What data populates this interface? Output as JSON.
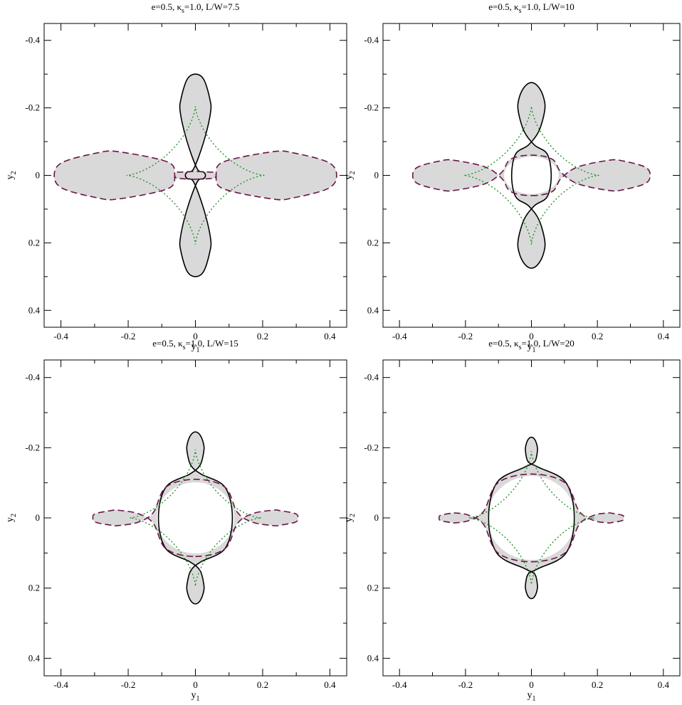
{
  "chart_data": [
    {
      "type": "line",
      "title": {
        "prefix": "e=0.5, κ",
        "sub": "s",
        "suffix": "=1.0, L/W=7.5"
      },
      "xlabel": {
        "main": "y",
        "sub": "1"
      },
      "ylabel": {
        "main": "y",
        "sub": "2"
      },
      "xlim": [
        -0.45,
        0.45
      ],
      "ylim": [
        -0.45,
        0.45
      ],
      "xticks": [
        "-0.4",
        "-0.2",
        "0",
        "0.2",
        "0.4"
      ],
      "yticks": [
        "-0.4",
        "-0.2",
        "0",
        "0.2",
        "0.4"
      ],
      "grid": false,
      "series": [
        {
          "style": "solid",
          "color": "#000000",
          "shape": "vertical_lobes",
          "outer_extent": 0.3,
          "waist": 0.03,
          "inner_half_width": 0.0,
          "inner_half_height": 0.0,
          "lobe_half_width": 0.045,
          "crossing": 0.1,
          "shaded": true
        },
        {
          "style": "dashed",
          "color": "#6a1548",
          "shape": "horizontal_lobes",
          "outer_extent": 0.42,
          "waist": 0.01,
          "inner_half_width": 0.06,
          "inner_half_height": 0.012,
          "lobe_half_width": 0.07,
          "crossing": 0.08,
          "shaded": true
        },
        {
          "style": "dotted",
          "color": "#1a8c1a",
          "shape": "astroid",
          "radius": 0.205
        }
      ]
    },
    {
      "type": "line",
      "title": {
        "prefix": "e=0.5, κ",
        "sub": "s",
        "suffix": "=1.0, L/W=10"
      },
      "xlabel": {
        "main": "y",
        "sub": "1"
      },
      "ylabel": {
        "main": "y",
        "sub": "2"
      },
      "xlim": [
        -0.45,
        0.45
      ],
      "ylim": [
        -0.45,
        0.45
      ],
      "xticks": [
        "-0.4",
        "-0.2",
        "0",
        "0.2",
        "0.4"
      ],
      "yticks": [
        "-0.4",
        "-0.2",
        "0",
        "0.2",
        "0.4"
      ],
      "grid": false,
      "series": [
        {
          "style": "solid",
          "color": "#000000",
          "shape": "vertical_lobes",
          "outer_extent": 0.275,
          "waist": 0.06,
          "inner_half_width": 0.09,
          "inner_half_height": 0.06,
          "lobe_half_width": 0.04,
          "crossing": 0.13,
          "shaded": true
        },
        {
          "style": "dashed",
          "color": "#6a1548",
          "shape": "horizontal_lobes",
          "outer_extent": 0.36,
          "waist": 0.06,
          "inner_half_width": 0.09,
          "inner_half_height": 0.06,
          "lobe_half_width": 0.045,
          "crossing": 0.14,
          "shaded": true
        },
        {
          "style": "dotted",
          "color": "#1a8c1a",
          "shape": "astroid",
          "radius": 0.205
        }
      ]
    },
    {
      "type": "line",
      "title": {
        "prefix": "e=0.5, κ",
        "sub": "s",
        "suffix": "=1.0, L/W=15"
      },
      "xlabel": {
        "main": "y",
        "sub": "1"
      },
      "ylabel": {
        "main": "y",
        "sub": "2"
      },
      "xlim": [
        -0.45,
        0.45
      ],
      "ylim": [
        -0.45,
        0.45
      ],
      "xticks": [
        "-0.4",
        "-0.2",
        "0",
        "0.2",
        "0.4"
      ],
      "yticks": [
        "-0.4",
        "-0.2",
        "0",
        "0.2",
        "0.4"
      ],
      "grid": false,
      "series": [
        {
          "style": "solid",
          "color": "#000000",
          "shape": "vertical_lobes",
          "outer_extent": 0.245,
          "waist": 0.11,
          "inner_half_width": 0.125,
          "inner_half_height": 0.11,
          "lobe_half_width": 0.025,
          "crossing": 0.15,
          "shaded": true
        },
        {
          "style": "dashed",
          "color": "#6a1548",
          "shape": "horizontal_lobes",
          "outer_extent": 0.305,
          "waist": 0.11,
          "inner_half_width": 0.125,
          "inner_half_height": 0.105,
          "lobe_half_width": 0.022,
          "crossing": 0.17,
          "shaded": true
        },
        {
          "style": "dotted",
          "color": "#1a8c1a",
          "shape": "astroid",
          "radius": 0.195
        }
      ]
    },
    {
      "type": "line",
      "title": {
        "prefix": "e=0.5, κ",
        "sub": "s",
        "suffix": "=1.0, L/W=20"
      },
      "xlabel": {
        "main": "y",
        "sub": "1"
      },
      "ylabel": {
        "main": "y",
        "sub": "2"
      },
      "xlim": [
        -0.45,
        0.45
      ],
      "ylim": [
        -0.45,
        0.45
      ],
      "xticks": [
        "-0.4",
        "-0.2",
        "0",
        "0.2",
        "0.4"
      ],
      "yticks": [
        "-0.4",
        "-0.2",
        "0",
        "0.2",
        "0.4"
      ],
      "grid": false,
      "series": [
        {
          "style": "solid",
          "color": "#000000",
          "shape": "vertical_lobes",
          "outer_extent": 0.23,
          "waist": 0.13,
          "inner_half_width": 0.145,
          "inner_half_height": 0.13,
          "lobe_half_width": 0.018,
          "crossing": 0.16,
          "shaded": true
        },
        {
          "style": "dashed",
          "color": "#6a1548",
          "shape": "horizontal_lobes",
          "outer_extent": 0.28,
          "waist": 0.125,
          "inner_half_width": 0.145,
          "inner_half_height": 0.125,
          "lobe_half_width": 0.014,
          "crossing": 0.19,
          "shaded": true
        },
        {
          "style": "dotted",
          "color": "#1a8c1a",
          "shape": "astroid",
          "radius": 0.19
        }
      ]
    }
  ]
}
